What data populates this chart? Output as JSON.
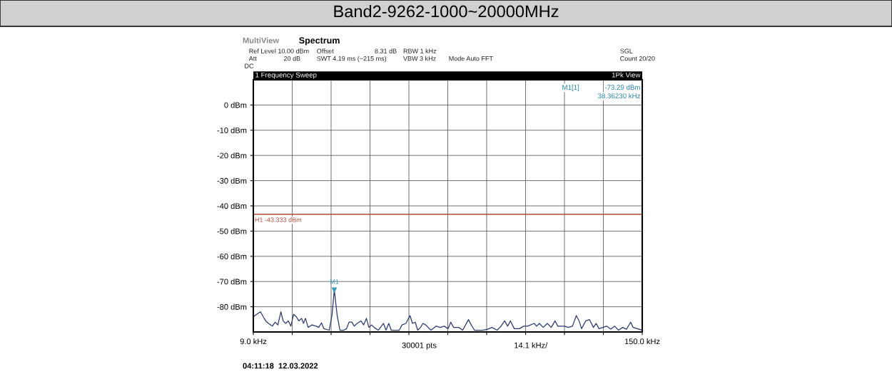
{
  "chart_data": {
    "type": "line",
    "title": "Band2-9262-1000~20000MHz",
    "x": [
      9.0,
      10.2,
      11.6,
      12.6,
      13.5,
      14.5,
      15.9,
      16.9,
      17.9,
      19.0,
      19.8,
      20.7,
      21.7,
      22.6,
      23.6,
      24.6,
      25.5,
      26.5,
      27.2,
      27.9,
      28.9,
      30.3,
      31.8,
      32.7,
      33.7,
      34.6,
      36.5,
      37.5,
      38.36,
      39.4,
      40.4,
      41.8,
      42.8,
      43.7,
      44.7,
      45.6,
      46.6,
      48.0,
      49.0,
      50.0,
      50.9,
      51.9,
      52.8,
      54.3,
      56.2,
      57.1,
      58.1,
      59.0,
      61.9,
      62.9,
      64.3,
      65.8,
      66.7,
      67.7,
      68.6,
      69.6,
      70.5,
      71.5,
      73.4,
      75.3,
      76.8,
      78.2,
      79.6,
      80.6,
      81.6,
      83.5,
      84.9,
      87.0,
      88.0,
      89.2,
      92.1,
      94.0,
      95.5,
      97.4,
      98.8,
      100.1,
      101.2,
      102.2,
      103.6,
      105.5,
      107.0,
      108.4,
      110.8,
      111.7,
      112.7,
      114.1,
      115.6,
      117.0,
      118.4,
      119.4,
      121.8,
      123.2,
      124.7,
      126.1,
      127.1,
      128.0,
      129.5,
      130.9,
      132.3,
      133.3,
      134.3,
      137.1,
      138.6,
      140.0,
      141.4,
      142.9,
      144.3,
      145.8,
      146.7,
      150.0
    ],
    "series": [
      {
        "color": "#2b3a6b",
        "values": [
          -84.0,
          -83.0,
          -82.0,
          -84.0,
          -85.6,
          -86.6,
          -87.7,
          -86.1,
          -87.2,
          -82.0,
          -85.6,
          -86.6,
          -85.6,
          -87.7,
          -83.0,
          -84.0,
          -85.6,
          -84.6,
          -86.6,
          -84.6,
          -88.2,
          -87.2,
          -87.7,
          -88.2,
          -86.4,
          -88.7,
          -89.3,
          -83.5,
          -73.3,
          -83.5,
          -89.3,
          -89.3,
          -88.7,
          -86.1,
          -86.1,
          -87.7,
          -86.6,
          -85.6,
          -87.2,
          -84.6,
          -88.2,
          -87.2,
          -88.2,
          -89.3,
          -86.6,
          -89.3,
          -86.6,
          -89.3,
          -89.3,
          -87.2,
          -86.6,
          -83.5,
          -86.6,
          -86.1,
          -89.3,
          -88.2,
          -86.6,
          -87.2,
          -89.3,
          -87.7,
          -88.2,
          -87.7,
          -88.7,
          -86.1,
          -88.2,
          -88.2,
          -89.3,
          -85.1,
          -87.2,
          -89.3,
          -89.3,
          -88.9,
          -88.2,
          -89.3,
          -87.7,
          -85.6,
          -87.7,
          -85.6,
          -88.7,
          -88.7,
          -87.7,
          -87.7,
          -86.6,
          -87.7,
          -86.6,
          -88.2,
          -86.6,
          -88.2,
          -85.6,
          -87.7,
          -87.7,
          -88.2,
          -87.7,
          -83.5,
          -85.6,
          -88.7,
          -85.6,
          -85.1,
          -88.2,
          -86.6,
          -88.7,
          -87.7,
          -88.9,
          -87.7,
          -89.3,
          -88.2,
          -88.9,
          -86.1,
          -88.2,
          -89.3
        ]
      }
    ],
    "xlim": [
      9,
      150
    ],
    "xticks": [
      {
        "value": 9,
        "label": "9.0 kHz"
      },
      {
        "value": 23.1,
        "label": null
      },
      {
        "value": 37.2,
        "label": null
      },
      {
        "value": 51.3,
        "label": null
      },
      {
        "value": 65.4,
        "label": null
      },
      {
        "value": 79.5,
        "label": null
      },
      {
        "value": 93.6,
        "label": null
      },
      {
        "value": 107.7,
        "label": null
      },
      {
        "value": 121.8,
        "label": null
      },
      {
        "value": 135.9,
        "label": null
      },
      {
        "value": 150,
        "label": "150.0 kHz"
      }
    ],
    "ylim": [
      -90,
      10
    ],
    "yticks": [
      {
        "value": 0,
        "label": "0 dBm"
      },
      {
        "value": -10,
        "label": "-10 dBm"
      },
      {
        "value": -20,
        "label": "-20 dBm"
      },
      {
        "value": -30,
        "label": "-30 dBm"
      },
      {
        "value": -40,
        "label": "-40 dBm"
      },
      {
        "value": -50,
        "label": "-50 dBm"
      },
      {
        "value": -60,
        "label": "-60 dBm"
      },
      {
        "value": -70,
        "label": "-70 dBm"
      },
      {
        "value": -80,
        "label": "-80 dBm"
      }
    ],
    "grid": true,
    "ref_lines": [
      {
        "axis": "y",
        "value": -43.333,
        "label": "H1 -43.333 dBm",
        "color": "#b04a3a"
      }
    ],
    "annotations": [
      {
        "text": "M1",
        "x": 38.36,
        "y": -73.3
      },
      "MultiView",
      "Spectrum",
      "Ref Level 10.00 dBm",
      "Offset",
      "8.31 dB",
      "RBW 1 kHz",
      "Att",
      "20 dB",
      "SWT 4.19 ms (~215 ms)",
      "VBW 3 kHz",
      "Mode Auto FFT",
      "DC",
      "SGL",
      "Count 20/20",
      "1 Frequency Sweep",
      "1Pk View",
      "M1[1]",
      "-73.29 dBm",
      "38.36230 kHz",
      "30001 pts",
      "14.1 kHz/",
      "04:11:18  12.03.2022"
    ]
  }
}
